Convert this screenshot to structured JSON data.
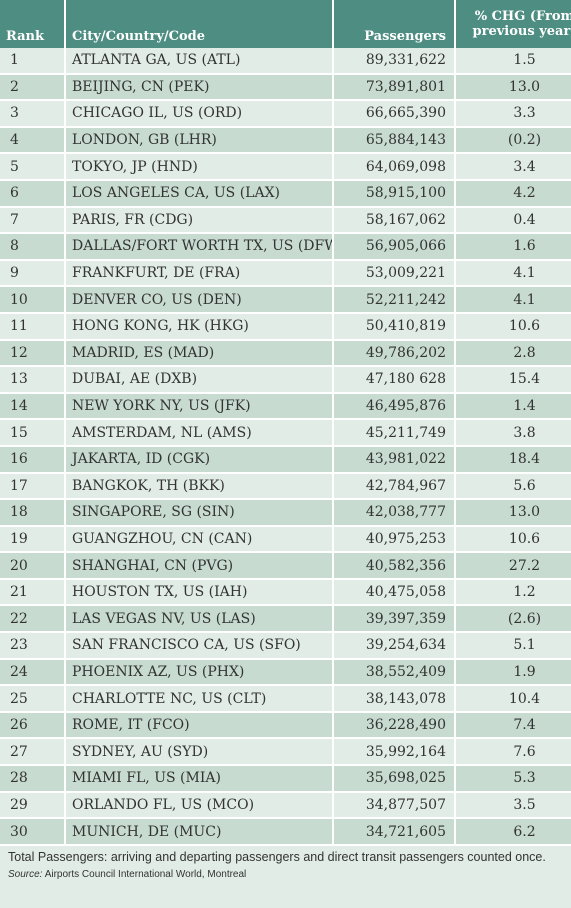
{
  "header": {
    "rank": "Rank",
    "city": "City/Country/Code",
    "passengers": "Passengers",
    "chg": "% CHG (From previous year)"
  },
  "rows": [
    {
      "rank": "1",
      "city": "ATLANTA GA, US (ATL)",
      "passengers": "89,331,622",
      "chg": "1.5"
    },
    {
      "rank": "2",
      "city": "BEIJING, CN (PEK)",
      "passengers": "73,891,801",
      "chg": "13.0"
    },
    {
      "rank": "3",
      "city": "CHICAGO IL, US (ORD)",
      "passengers": "66,665,390",
      "chg": "3.3"
    },
    {
      "rank": "4",
      "city": "LONDON, GB (LHR)",
      "passengers": "65,884,143",
      "chg": "(0.2)"
    },
    {
      "rank": "5",
      "city": "TOKYO, JP (HND)",
      "passengers": "64,069,098",
      "chg": "3.4"
    },
    {
      "rank": "6",
      "city": "LOS ANGELES CA, US (LAX)",
      "passengers": "58,915,100",
      "chg": "4.2"
    },
    {
      "rank": "7",
      "city": "PARIS, FR (CDG)",
      "passengers": "58,167,062",
      "chg": "0.4"
    },
    {
      "rank": "8",
      "city": "DALLAS/FORT WORTH TX, US (DFW)",
      "passengers": "56,905,066",
      "chg": "1.6"
    },
    {
      "rank": "9",
      "city": "FRANKFURT, DE (FRA)",
      "passengers": "53,009,221",
      "chg": "4.1"
    },
    {
      "rank": "10",
      "city": "DENVER CO, US (DEN)",
      "passengers": "52,211,242",
      "chg": "4.1"
    },
    {
      "rank": "11",
      "city": "HONG KONG, HK (HKG)",
      "passengers": "50,410,819",
      "chg": "10.6"
    },
    {
      "rank": "12",
      "city": "MADRID, ES (MAD)",
      "passengers": "49,786,202",
      "chg": "2.8"
    },
    {
      "rank": "13",
      "city": "DUBAI, AE (DXB)",
      "passengers": "47,180 628",
      "chg": "15.4"
    },
    {
      "rank": "14",
      "city": "NEW YORK NY, US (JFK)",
      "passengers": "46,495,876",
      "chg": "1.4"
    },
    {
      "rank": "15",
      "city": "AMSTERDAM, NL (AMS)",
      "passengers": "45,211,749",
      "chg": "3.8"
    },
    {
      "rank": "16",
      "city": "JAKARTA, ID (CGK)",
      "passengers": "43,981,022",
      "chg": "18.4"
    },
    {
      "rank": "17",
      "city": "BANGKOK, TH (BKK)",
      "passengers": "42,784,967",
      "chg": "5.6"
    },
    {
      "rank": "18",
      "city": "SINGAPORE, SG (SIN)",
      "passengers": "42,038,777",
      "chg": "13.0"
    },
    {
      "rank": "19",
      "city": "GUANGZHOU, CN (CAN)",
      "passengers": "40,975,253",
      "chg": "10.6"
    },
    {
      "rank": "20",
      "city": "SHANGHAI, CN (PVG)",
      "passengers": "40,582,356",
      "chg": "27.2"
    },
    {
      "rank": "21",
      "city": "HOUSTON TX, US (IAH)",
      "passengers": "40,475,058",
      "chg": "1.2"
    },
    {
      "rank": "22",
      "city": "LAS VEGAS NV, US (LAS)",
      "passengers": "39,397,359",
      "chg": "(2.6)"
    },
    {
      "rank": "23",
      "city": "SAN FRANCISCO CA, US (SFO)",
      "passengers": "39,254,634",
      "chg": "5.1"
    },
    {
      "rank": "24",
      "city": "PHOENIX AZ, US (PHX)",
      "passengers": "38,552,409",
      "chg": "1.9"
    },
    {
      "rank": "25",
      "city": "CHARLOTTE NC, US (CLT)",
      "passengers": "38,143,078",
      "chg": "10.4"
    },
    {
      "rank": "26",
      "city": "ROME, IT (FCO)",
      "passengers": "36,228,490",
      "chg": "7.4"
    },
    {
      "rank": "27",
      "city": "SYDNEY, AU (SYD)",
      "passengers": "35,992,164",
      "chg": "7.6"
    },
    {
      "rank": "28",
      "city": "MIAMI FL, US (MIA)",
      "passengers": "35,698,025",
      "chg": "5.3"
    },
    {
      "rank": "29",
      "city": "ORLANDO FL, US (MCO)",
      "passengers": "34,877,507",
      "chg": "3.5"
    },
    {
      "rank": "30",
      "city": "MUNICH, DE (MUC)",
      "passengers": "34,721,605",
      "chg": "6.2"
    }
  ],
  "footer": {
    "note": "Total Passengers: arriving and departing passengers and direct transit passengers counted once.",
    "source_label": "Source:",
    "source_text": " Airports Council International World, Montreal"
  },
  "colors": {
    "header": "#4e8e82",
    "row_light": "#e1ece6",
    "row_dark": "#c7dbd0"
  }
}
